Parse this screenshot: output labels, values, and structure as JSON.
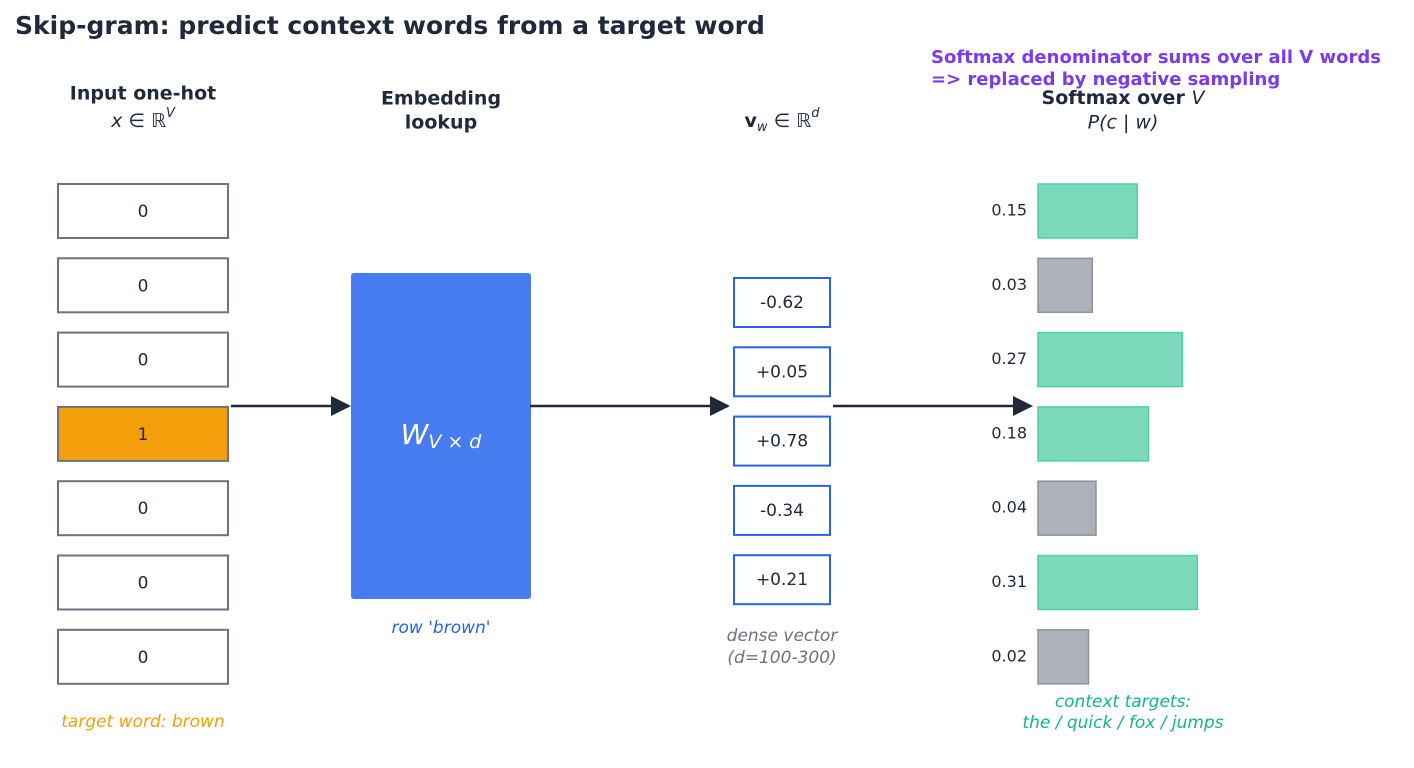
{
  "title": "Skip-gram: predict context words from a target word",
  "note": [
    "Softmax denominator sums over all V words",
    "=> replaced by negative sampling"
  ],
  "input": {
    "header": "Input one-hot",
    "math": {
      "base": "x ∈ ℝ",
      "sup": "V"
    },
    "cells": [
      "0",
      "0",
      "0",
      "1",
      "0",
      "0",
      "0"
    ],
    "highlight": 3,
    "caption": "target word: brown"
  },
  "embedding": {
    "header": [
      "Embedding",
      "lookup"
    ],
    "matrix": {
      "base": "W",
      "sub": "V × d"
    },
    "caption": "row 'brown'"
  },
  "vector": {
    "math": {
      "base": "v",
      "sub": "w",
      "rel": " ∈ ℝ",
      "sup": "d"
    },
    "values": [
      "-0.62",
      "+0.05",
      "+0.78",
      "-0.34",
      "+0.21"
    ],
    "caption": [
      "dense vector",
      "(d=100-300)"
    ]
  },
  "softmax": {
    "header": {
      "base": "Softmax over ",
      "var": "V"
    },
    "math": "P(c | w)",
    "values": [
      0.15,
      0.03,
      0.27,
      0.18,
      0.04,
      0.31,
      0.02
    ],
    "context": [
      true,
      false,
      true,
      true,
      false,
      true,
      false
    ],
    "caption": [
      "context targets:",
      "the / quick / fox / jumps"
    ]
  }
}
